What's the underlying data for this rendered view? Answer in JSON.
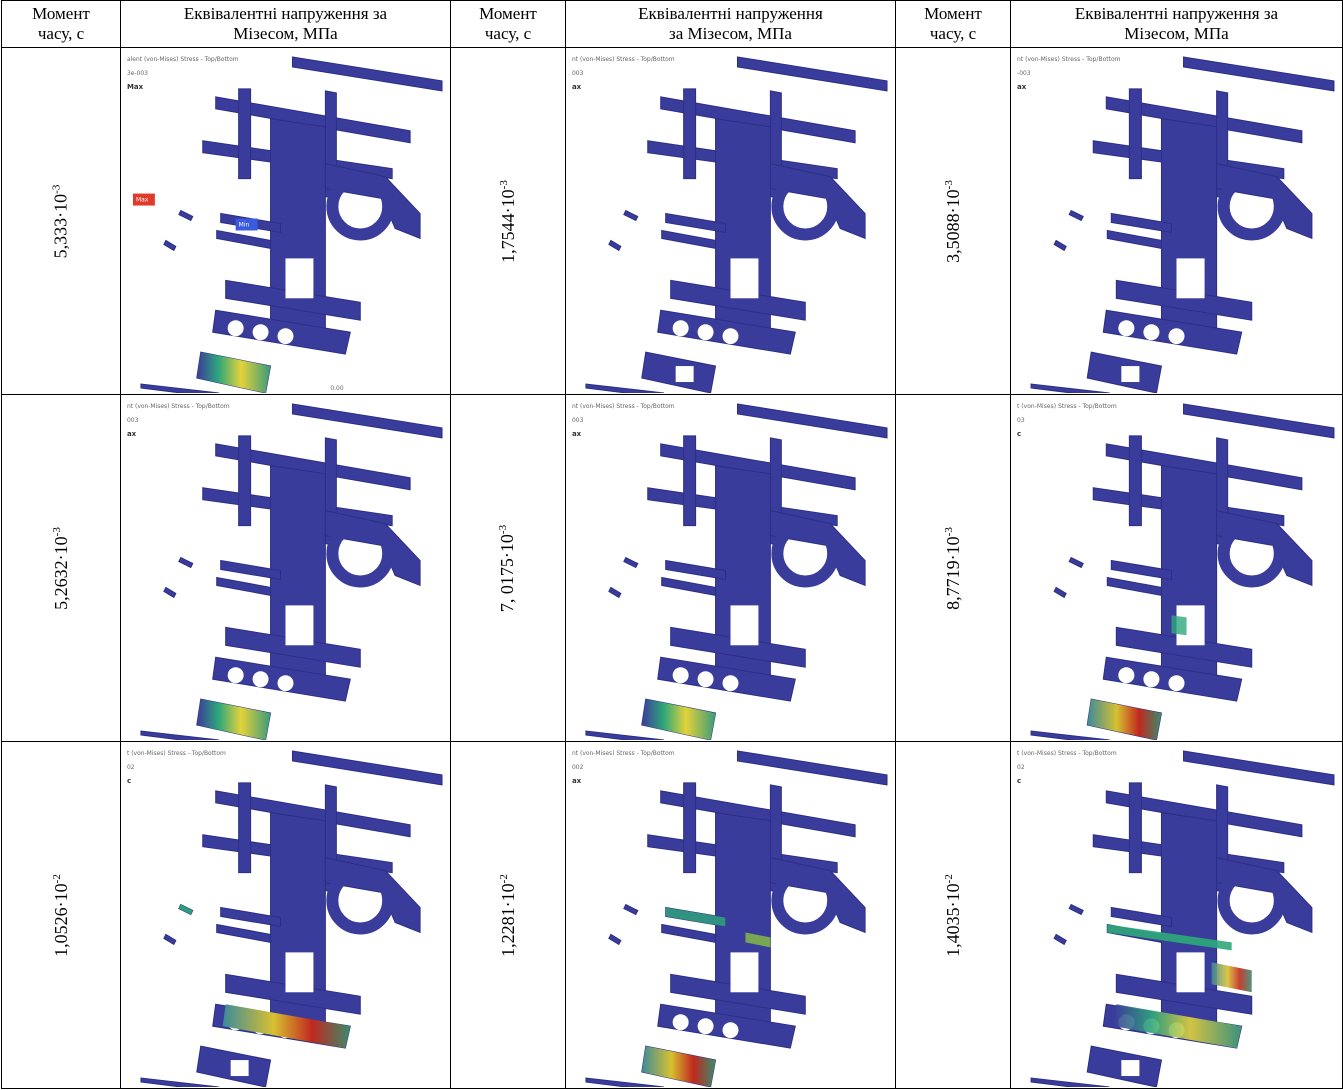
{
  "headers": [
    [
      "Момент",
      "часу, с"
    ],
    [
      "Еквівалентні напруження за",
      "Мізесом, МПа"
    ],
    [
      "Момент",
      "часу, с"
    ],
    [
      "Еквівалентні напруження",
      "за Мізесом, МПа"
    ],
    [
      "Момент",
      "часу, с"
    ],
    [
      "Еквівалентні напруження за",
      "Мізесом, МПа"
    ]
  ],
  "rows": [
    {
      "cells": [
        {
          "time": {
            "base": "5,333·10",
            "exp": "-3"
          },
          "image": {
            "caption": "alent (von-Mises) Stress - Top/Bottom",
            "line": "3e-003",
            "max": "Max",
            "markers": [
              "Max",
              "Min"
            ],
            "scale": "0.00"
          }
        },
        {
          "time": {
            "base": "1,7544·10",
            "exp": "-3"
          },
          "image": {
            "caption": "nt (von-Mises) Stress - Top/Bottom",
            "line": "003",
            "max": "ax"
          }
        },
        {
          "time": {
            "base": "3,5088·10",
            "exp": "-3"
          },
          "image": {
            "caption": "nt (von-Mises) Stress - Top/Bottom",
            "line": "-003",
            "max": "ax"
          }
        }
      ]
    },
    {
      "cells": [
        {
          "time": {
            "base": "5,2632·10",
            "exp": "-3"
          },
          "image": {
            "caption": "nt (von-Mises) Stress - Top/Bottom",
            "line": "003",
            "max": "ax"
          }
        },
        {
          "time": {
            "base": "7, 0175·10",
            "exp": "-3"
          },
          "image": {
            "caption": "nt (von-Mises) Stress - Top/Bottom",
            "line": "003",
            "max": "ax"
          }
        },
        {
          "time": {
            "base": "8,7719·10",
            "exp": "-3"
          },
          "image": {
            "caption": "t (von-Mises) Stress - Top/Bottom",
            "line": "03",
            "max": "c"
          }
        }
      ]
    },
    {
      "cells": [
        {
          "time": {
            "base": "1,0526·10",
            "exp": "-2"
          },
          "image": {
            "caption": "t (von-Mises) Stress - Top/Bottom",
            "line": "02",
            "max": "c"
          }
        },
        {
          "time": {
            "base": "1,2281·10",
            "exp": "-2"
          },
          "image": {
            "caption": "nt (von-Mises) Stress - Top/Bottom",
            "line": "002",
            "max": "ax"
          }
        },
        {
          "time": {
            "base": "1,4035·10",
            "exp": "-2"
          },
          "image": {
            "caption": "t (von-Mises) Stress - Top/Bottom",
            "line": "02",
            "max": "c"
          }
        }
      ]
    }
  ]
}
